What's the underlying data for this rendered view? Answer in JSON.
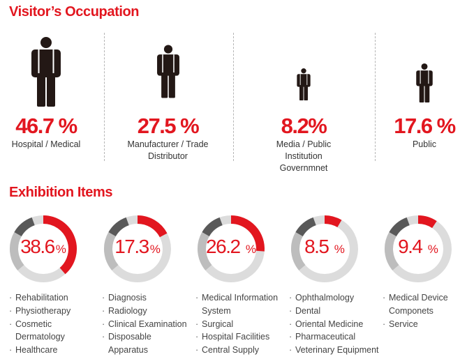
{
  "occupation": {
    "title": "Visitor’s Occupation",
    "items": [
      {
        "percent": "46.7 %",
        "label": "Hospital / Medical"
      },
      {
        "percent": "27.5 %",
        "label": "Manufacturer / Trade Distributor"
      },
      {
        "percent": "8.2%",
        "label": "Media / Public Institution Governmnet"
      },
      {
        "percent": "17.6 %",
        "label": "Public"
      }
    ]
  },
  "exhibition": {
    "title": "Exhibition Items",
    "unit": "%",
    "items": [
      {
        "value": "38.6",
        "fraction": 0.386,
        "list": [
          "Rehabilitation",
          "Physiotherapy",
          "Cosmetic Dermatology",
          "Healthcare"
        ]
      },
      {
        "value": "17.3",
        "fraction": 0.173,
        "list": [
          "Diagnosis",
          "Radiology",
          "Clinical Examination",
          "Disposable Apparatus"
        ]
      },
      {
        "value": "26.2 ",
        "fraction": 0.262,
        "list": [
          "Medical Information System",
          "Surgical",
          "Hospital Facilities",
          "Central Supply"
        ]
      },
      {
        "value": "8.5 ",
        "fraction": 0.085,
        "list": [
          "Ophthalmology",
          "Dental",
          "Oriental Medicine",
          "Pharmaceutical",
          "Veterinary Equipment"
        ]
      },
      {
        "value": "9.4 ",
        "fraction": 0.094,
        "list": [
          "Medical Device Componets",
          "Service"
        ]
      }
    ]
  },
  "colors": {
    "accent": "#e2161f",
    "ring_light": "#dcdcdc",
    "ring_mid": "#bdbdbd",
    "ring_dark": "#595959",
    "figure": "#231815"
  }
}
